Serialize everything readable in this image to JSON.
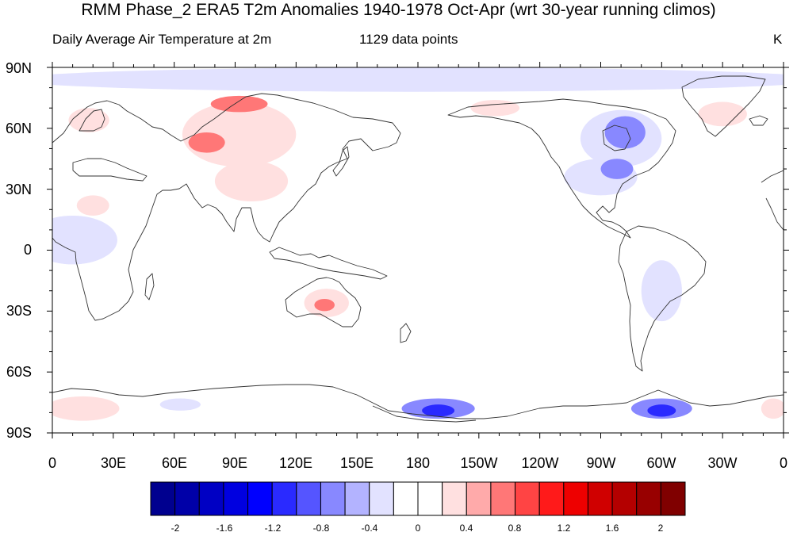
{
  "title": "RMM Phase_2 ERA5 T2m Anomalies 1940-1978 Oct-Apr (wrt 30-year running climos)",
  "subtitle_left": "Daily Average Air Temperature at 2m",
  "subtitle_center": "1129 data points",
  "units": "K",
  "map": {
    "projection": "cylindrical-equidistant",
    "center_longitude": 180,
    "lon_range": [
      0,
      360
    ],
    "lat_range": [
      -90,
      90
    ],
    "lat_labels": [
      "90N",
      "60N",
      "30N",
      "0",
      "30S",
      "60S",
      "90S"
    ],
    "lon_labels": [
      "0",
      "30E",
      "60E",
      "90E",
      "120E",
      "150E",
      "180",
      "150W",
      "120W",
      "90W",
      "60W",
      "30W",
      "0"
    ]
  },
  "colorbar": {
    "labels": [
      "-2",
      "-1.6",
      "-1.2",
      "-0.8",
      "-0.4",
      "0",
      "0.4",
      "0.8",
      "1.2",
      "1.6",
      "2"
    ],
    "colors": [
      "#00008f",
      "#0000a8",
      "#0000c4",
      "#0000e0",
      "#0000ff",
      "#2a2aff",
      "#5555ff",
      "#8888ff",
      "#b3b3ff",
      "#e2e2ff",
      "#ffffff",
      "#ffffff",
      "#ffe0e0",
      "#ffaaaa",
      "#ff7777",
      "#ff4444",
      "#ff1a1a",
      "#ee0000",
      "#d00000",
      "#b40000",
      "#980000",
      "#800000"
    ]
  },
  "anomalies": [
    {
      "name": "north-central-asia-warm",
      "lon": 92,
      "lat": 57,
      "rlon": 28,
      "rlat": 16,
      "value": 0.4
    },
    {
      "name": "siberia-warm-core",
      "lon": 76,
      "lat": 53,
      "rlon": 9,
      "rlat": 5,
      "value": 0.8
    },
    {
      "name": "east-siberia-warm",
      "lon": 92,
      "lat": 72,
      "rlon": 14,
      "rlat": 4,
      "value": 0.8
    },
    {
      "name": "east-asia-warm",
      "lon": 98,
      "lat": 34,
      "rlon": 18,
      "rlat": 10,
      "value": 0.4
    },
    {
      "name": "scandinavia-warm",
      "lon": 18,
      "lat": 64,
      "rlon": 10,
      "rlat": 6,
      "value": 0.4
    },
    {
      "name": "north-africa-warm",
      "lon": 20,
      "lat": 22,
      "rlon": 8,
      "rlat": 5,
      "value": 0.4
    },
    {
      "name": "australia-warm",
      "lon": 135,
      "lat": -26,
      "rlon": 11,
      "rlat": 7,
      "value": 0.4
    },
    {
      "name": "australia-warm-core",
      "lon": 134,
      "lat": -27,
      "rlon": 5,
      "rlat": 3,
      "value": 0.8
    },
    {
      "name": "greenland-sea-warm",
      "lon": 330,
      "lat": 67,
      "rlon": 12,
      "rlat": 6,
      "value": 0.4
    },
    {
      "name": "alaska-warm",
      "lon": 218,
      "lat": 70,
      "rlon": 12,
      "rlat": 4,
      "value": 0.4
    },
    {
      "name": "antarctic-atlantic-warm",
      "lon": 15,
      "lat": -78,
      "rlon": 18,
      "rlat": 6,
      "value": 0.4
    },
    {
      "name": "antarctic-east-warm",
      "lon": 355,
      "lat": -78,
      "rlon": 6,
      "rlat": 5,
      "value": 0.4
    },
    {
      "name": "arctic-cold-band",
      "lon": 180,
      "lat": 84,
      "rlon": 200,
      "rlat": 6,
      "value": -0.4
    },
    {
      "name": "canada-cold",
      "lon": 280,
      "lat": 55,
      "rlon": 20,
      "rlat": 14,
      "value": -0.4
    },
    {
      "name": "hudson-cold-core",
      "lon": 282,
      "lat": 58,
      "rlon": 10,
      "rlat": 8,
      "value": -0.8
    },
    {
      "name": "north-america-cold",
      "lon": 270,
      "lat": 36,
      "rlon": 18,
      "rlat": 9,
      "value": -0.4
    },
    {
      "name": "east-us-cold",
      "lon": 278,
      "lat": 40,
      "rlon": 8,
      "rlat": 5,
      "value": -0.8
    },
    {
      "name": "west-africa-cold",
      "lon": 10,
      "lat": 5,
      "rlon": 22,
      "rlat": 12,
      "value": -0.4
    },
    {
      "name": "south-america-cold",
      "lon": 300,
      "lat": -20,
      "rlon": 10,
      "rlat": 15,
      "value": -0.4
    },
    {
      "name": "ross-sea-cold",
      "lon": 190,
      "lat": -78,
      "rlon": 18,
      "rlat": 5,
      "value": -0.8
    },
    {
      "name": "ross-sea-cold-core",
      "lon": 190,
      "lat": -79,
      "rlon": 8,
      "rlat": 3,
      "value": -1.2
    },
    {
      "name": "weddell-cold",
      "lon": 300,
      "lat": -78,
      "rlon": 15,
      "rlat": 5,
      "value": -0.8
    },
    {
      "name": "weddell-cold-core",
      "lon": 300,
      "lat": -79,
      "rlon": 7,
      "rlat": 3,
      "value": -1.2
    },
    {
      "name": "antarctic-cold-60e",
      "lon": 63,
      "lat": -76,
      "rlon": 10,
      "rlat": 3,
      "value": -0.4
    }
  ]
}
